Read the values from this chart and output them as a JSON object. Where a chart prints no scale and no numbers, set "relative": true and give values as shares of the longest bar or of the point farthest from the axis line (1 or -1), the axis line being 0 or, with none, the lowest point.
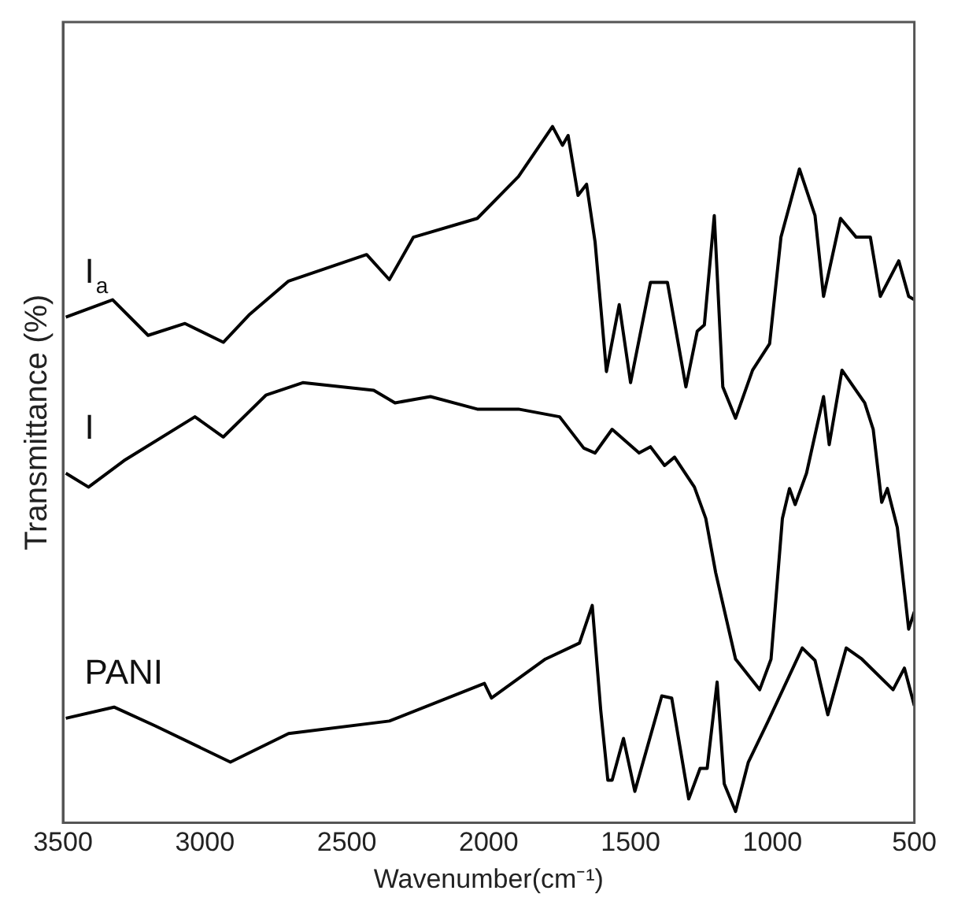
{
  "chart_data": {
    "type": "line",
    "relative": true,
    "xlabel": "Wavenumber(cm⁻¹)",
    "ylabel": "Transmittance (%)",
    "xlim": [
      3500,
      500
    ],
    "xticks": [
      3500,
      3000,
      2500,
      2000,
      1500,
      1000,
      500
    ],
    "tick_labels": "x",
    "grid": false,
    "legend": false,
    "series": [
      {
        "name": "I$_{a}$",
        "color": "#000000",
        "x": [
          3490,
          3325,
          3200,
          3070,
          2935,
          2845,
          2705,
          2430,
          2350,
          2265,
          2040,
          1895,
          1775,
          1740,
          1720,
          1685,
          1655,
          1625,
          1585,
          1540,
          1500,
          1430,
          1370,
          1305,
          1265,
          1240,
          1205,
          1175,
          1130,
          1070,
          1010,
          970,
          905,
          850,
          820,
          760,
          705,
          655,
          620,
          555,
          520,
          500
        ],
        "values": [
          0.726,
          0.751,
          0.7,
          0.717,
          0.69,
          0.729,
          0.778,
          0.816,
          0.78,
          0.841,
          0.868,
          0.928,
          1.0,
          0.973,
          0.987,
          0.901,
          0.917,
          0.834,
          0.648,
          0.744,
          0.632,
          0.776,
          0.776,
          0.626,
          0.706,
          0.715,
          0.872,
          0.626,
          0.581,
          0.65,
          0.688,
          0.841,
          0.939,
          0.872,
          0.756,
          0.868,
          0.841,
          0.841,
          0.756,
          0.807,
          0.756,
          0.751
        ]
      },
      {
        "name": "I",
        "color": "#000000",
        "x": [
          3490,
          3410,
          3285,
          3035,
          2935,
          2785,
          2655,
          2405,
          2330,
          2205,
          2040,
          1895,
          1750,
          1665,
          1625,
          1565,
          1470,
          1430,
          1380,
          1345,
          1275,
          1235,
          1200,
          1130,
          1045,
          1005,
          965,
          940,
          920,
          880,
          820,
          800,
          755,
          675,
          645,
          615,
          595,
          560,
          520,
          500
        ],
        "values": [
          0.502,
          0.482,
          0.52,
          0.583,
          0.554,
          0.614,
          0.632,
          0.621,
          0.603,
          0.612,
          0.594,
          0.594,
          0.583,
          0.538,
          0.531,
          0.565,
          0.531,
          0.54,
          0.513,
          0.525,
          0.482,
          0.437,
          0.359,
          0.235,
          0.191,
          0.235,
          0.437,
          0.48,
          0.457,
          0.502,
          0.612,
          0.543,
          0.65,
          0.603,
          0.565,
          0.46,
          0.48,
          0.424,
          0.278,
          0.303
        ]
      },
      {
        "name": "PANI",
        "color": "#000000",
        "x": [
          3490,
          3320,
          3175,
          2910,
          2705,
          2350,
          2015,
          1990,
          1800,
          1680,
          1635,
          1605,
          1580,
          1565,
          1525,
          1485,
          1390,
          1355,
          1295,
          1255,
          1230,
          1195,
          1170,
          1130,
          1085,
          1015,
          895,
          850,
          805,
          740,
          685,
          575,
          535,
          500
        ],
        "values": [
          0.15,
          0.166,
          0.139,
          0.087,
          0.128,
          0.146,
          0.2,
          0.179,
          0.235,
          0.258,
          0.312,
          0.161,
          0.061,
          0.061,
          0.121,
          0.045,
          0.182,
          0.179,
          0.034,
          0.078,
          0.078,
          0.202,
          0.056,
          0.016,
          0.087,
          0.146,
          0.251,
          0.233,
          0.155,
          0.251,
          0.235,
          0.191,
          0.222,
          0.168
        ]
      }
    ]
  }
}
